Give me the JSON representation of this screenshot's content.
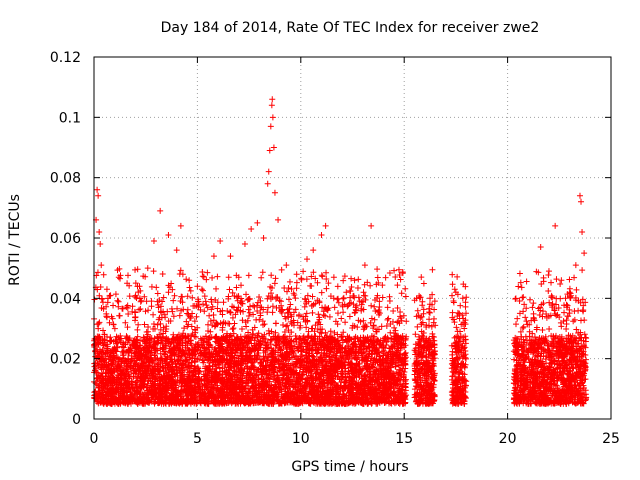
{
  "chart_data": {
    "type": "scatter",
    "title": "Day 184 of 2014, Rate Of TEC Index for receiver zwe2",
    "xlabel": "GPS time / hours",
    "ylabel": "ROTI / TECUs",
    "xlim": [
      0,
      25
    ],
    "ylim": [
      0,
      0.12
    ],
    "x_ticks": [
      0,
      5,
      10,
      15,
      20,
      25
    ],
    "x_tick_labels": [
      "0",
      "5",
      "10",
      "15",
      "20",
      "25"
    ],
    "y_ticks": [
      0,
      0.02,
      0.04,
      0.06,
      0.08,
      0.1,
      0.12
    ],
    "y_tick_labels": [
      "0",
      "0.02",
      "0.04",
      "0.06",
      "0.08",
      "0.1",
      "0.12"
    ],
    "grid": true,
    "marker": "+",
    "color": "#ff0000",
    "series": [
      {
        "name": "ROTI",
        "data_coverage_hours": [
          [
            0,
            15.1
          ],
          [
            15.5,
            16.5
          ],
          [
            17.3,
            18.0
          ],
          [
            20.3,
            23.8
          ]
        ],
        "typical_range": [
          0.005,
          0.035
        ],
        "points": [
          [
            0.1,
            0.066
          ],
          [
            0.15,
            0.076
          ],
          [
            0.2,
            0.074
          ],
          [
            0.25,
            0.062
          ],
          [
            0.3,
            0.058
          ],
          [
            0.35,
            0.051
          ],
          [
            0.8,
            0.041
          ],
          [
            1.2,
            0.047
          ],
          [
            1.6,
            0.045
          ],
          [
            2.2,
            0.044
          ],
          [
            2.6,
            0.05
          ],
          [
            2.9,
            0.059
          ],
          [
            3.2,
            0.069
          ],
          [
            3.6,
            0.061
          ],
          [
            4.0,
            0.056
          ],
          [
            4.2,
            0.064
          ],
          [
            4.6,
            0.046
          ],
          [
            5.0,
            0.044
          ],
          [
            5.4,
            0.039
          ],
          [
            5.8,
            0.054
          ],
          [
            6.1,
            0.059
          ],
          [
            6.6,
            0.054
          ],
          [
            7.0,
            0.047
          ],
          [
            7.3,
            0.058
          ],
          [
            7.6,
            0.063
          ],
          [
            7.9,
            0.065
          ],
          [
            8.2,
            0.06
          ],
          [
            8.4,
            0.078
          ],
          [
            8.45,
            0.082
          ],
          [
            8.5,
            0.089
          ],
          [
            8.55,
            0.097
          ],
          [
            8.6,
            0.104
          ],
          [
            8.62,
            0.106
          ],
          [
            8.65,
            0.1
          ],
          [
            8.7,
            0.09
          ],
          [
            8.75,
            0.075
          ],
          [
            8.9,
            0.066
          ],
          [
            9.3,
            0.051
          ],
          [
            9.8,
            0.048
          ],
          [
            10.3,
            0.053
          ],
          [
            10.6,
            0.056
          ],
          [
            11.0,
            0.061
          ],
          [
            11.2,
            0.064
          ],
          [
            11.6,
            0.047
          ],
          [
            12.2,
            0.042
          ],
          [
            12.6,
            0.046
          ],
          [
            13.1,
            0.051
          ],
          [
            13.4,
            0.064
          ],
          [
            13.8,
            0.039
          ],
          [
            14.2,
            0.037
          ],
          [
            14.8,
            0.034
          ],
          [
            15.6,
            0.034
          ],
          [
            15.9,
            0.032
          ],
          [
            16.2,
            0.031
          ],
          [
            16.4,
            0.026
          ],
          [
            17.4,
            0.033
          ],
          [
            17.5,
            0.042
          ],
          [
            17.7,
            0.029
          ],
          [
            17.9,
            0.021
          ],
          [
            20.4,
            0.04
          ],
          [
            20.8,
            0.038
          ],
          [
            21.2,
            0.037
          ],
          [
            21.6,
            0.057
          ],
          [
            22.0,
            0.049
          ],
          [
            22.3,
            0.064
          ],
          [
            22.6,
            0.046
          ],
          [
            23.0,
            0.042
          ],
          [
            23.3,
            0.051
          ],
          [
            23.5,
            0.074
          ],
          [
            23.55,
            0.072
          ],
          [
            23.6,
            0.062
          ],
          [
            23.7,
            0.055
          ]
        ]
      }
    ]
  }
}
